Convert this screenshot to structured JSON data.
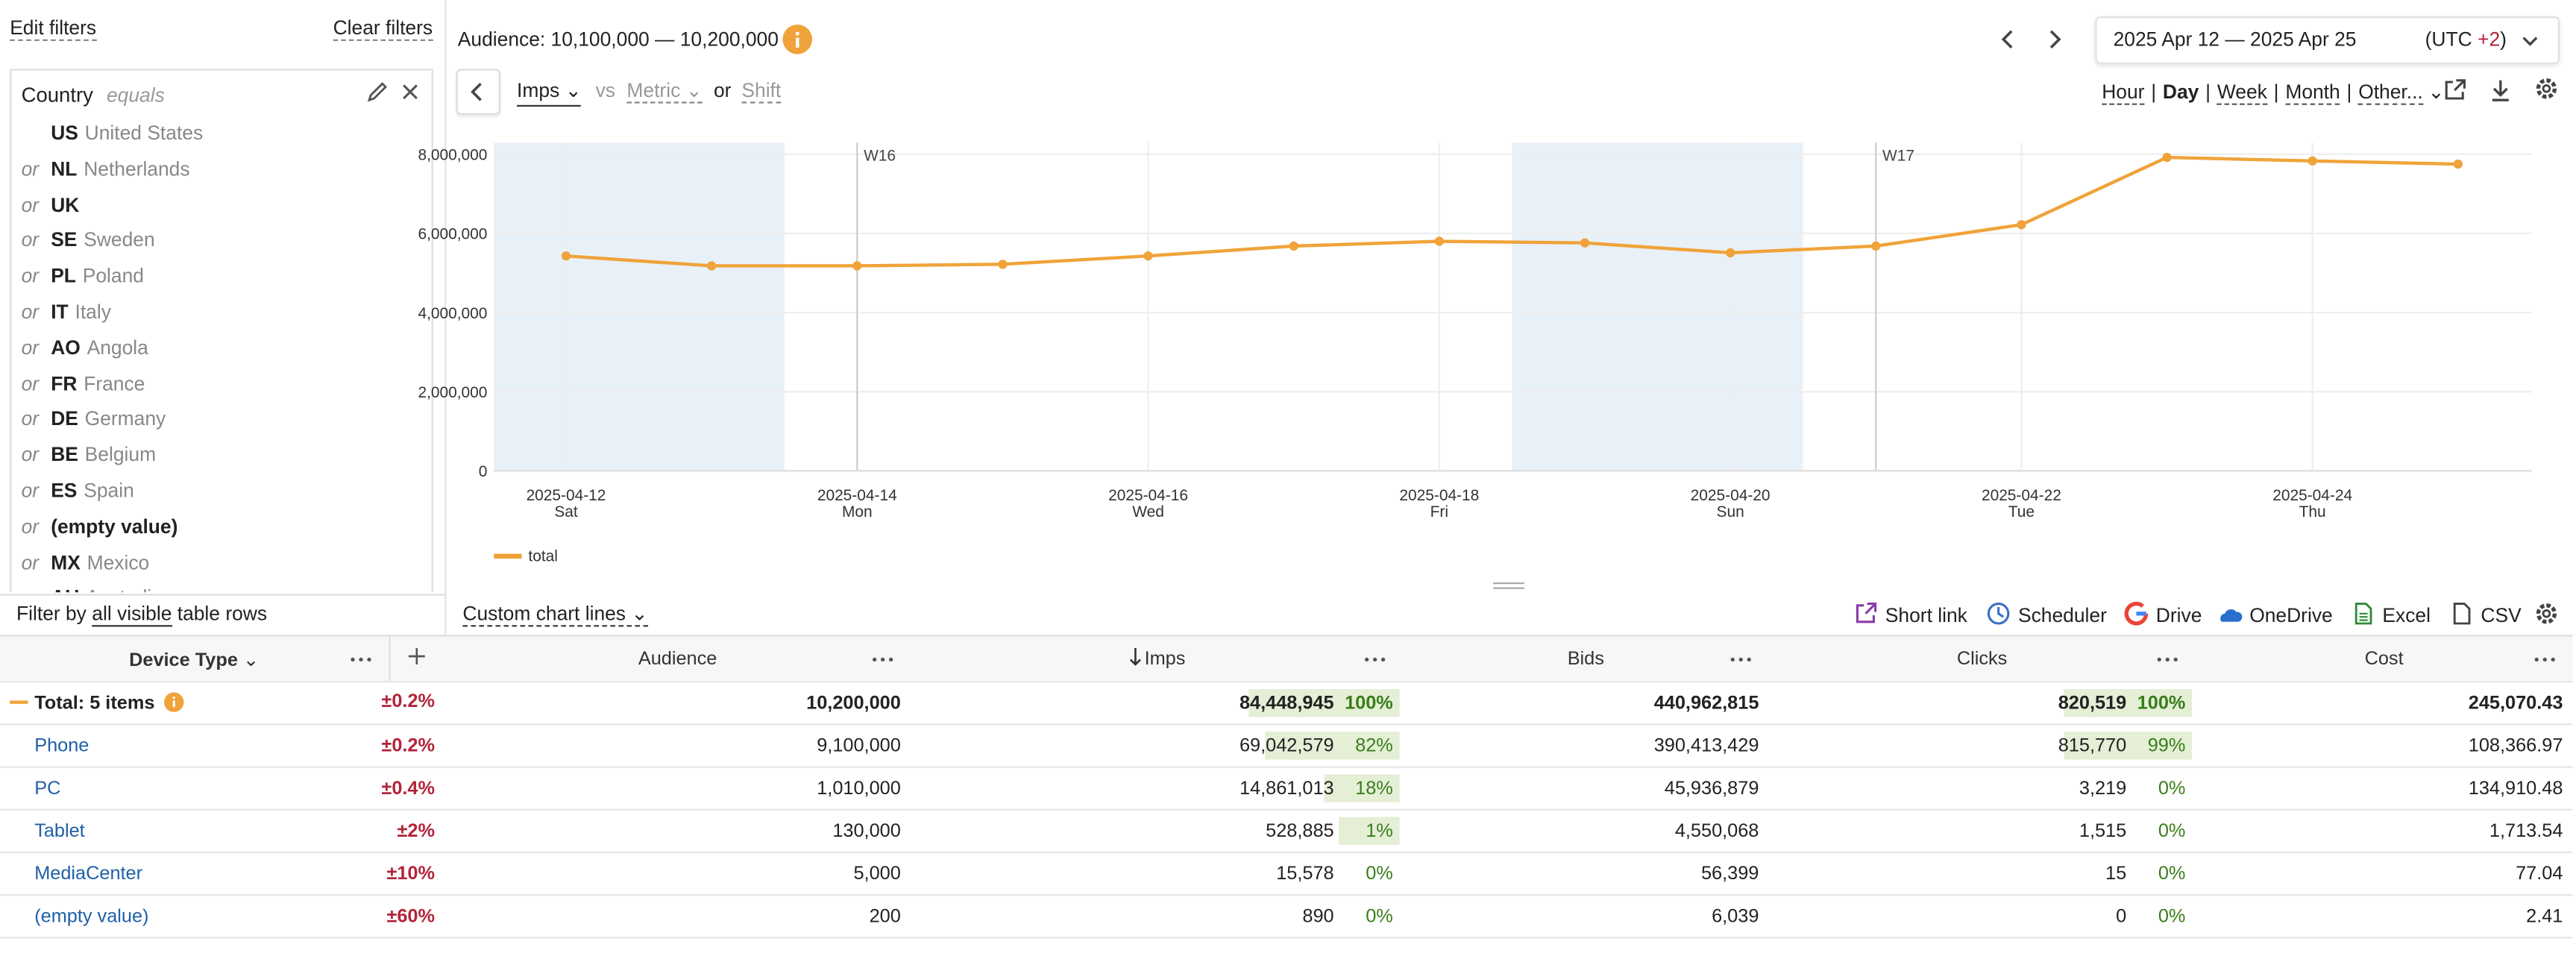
{
  "filters": {
    "edit": "Edit filters",
    "clear": "Clear filters",
    "field": "Country",
    "operator": "equals",
    "connector": "or",
    "values": [
      {
        "code": "US",
        "name": "United States"
      },
      {
        "code": "NL",
        "name": "Netherlands"
      },
      {
        "code": "UK"
      },
      {
        "code": "SE",
        "name": "Sweden"
      },
      {
        "code": "PL",
        "name": "Poland"
      },
      {
        "code": "IT",
        "name": "Italy"
      },
      {
        "code": "AO",
        "name": "Angola"
      },
      {
        "code": "FR",
        "name": "France"
      },
      {
        "code": "DE",
        "name": "Germany"
      },
      {
        "code": "BE",
        "name": "Belgium"
      },
      {
        "code": "ES",
        "name": "Spain"
      },
      {
        "code": "(empty value)"
      },
      {
        "code": "MX",
        "name": "Mexico"
      },
      {
        "code": "AU",
        "name": "Australia"
      }
    ],
    "filter_by": {
      "prefix": "Filter by",
      "scope": "all visible",
      "suffix": "table rows"
    }
  },
  "header": {
    "audience": "Audience: 10,100,000 — 10,200,000",
    "date_range": "2025 Apr 12 — 2025 Apr 25",
    "utc_open": "(UTC",
    "utc_offset": "+2",
    "utc_close": ")"
  },
  "metric_bar": {
    "metric": "Imps",
    "vs": "vs",
    "compare": "Metric",
    "or": "or",
    "shift": "Shift"
  },
  "granularity": {
    "options": [
      "Hour",
      "Day",
      "Week",
      "Month",
      "Other..."
    ],
    "selected": "Day",
    "separator": "|"
  },
  "chart_data": {
    "type": "line",
    "x": [
      "2025-04-12",
      "2025-04-13",
      "2025-04-14",
      "2025-04-15",
      "2025-04-16",
      "2025-04-17",
      "2025-04-18",
      "2025-04-19",
      "2025-04-20",
      "2025-04-21",
      "2025-04-22",
      "2025-04-23",
      "2025-04-24",
      "2025-04-25"
    ],
    "series": [
      {
        "name": "total",
        "color": "#f0a33a",
        "values": [
          5430000,
          5180000,
          5180000,
          5220000,
          5430000,
          5680000,
          5800000,
          5760000,
          5510000,
          5680000,
          6220000,
          7920000,
          7830000,
          7750000
        ]
      }
    ],
    "xticks": [
      {
        "date": "2025-04-12",
        "weekday": "Sat"
      },
      {
        "date": "2025-04-14",
        "weekday": "Mon"
      },
      {
        "date": "2025-04-16",
        "weekday": "Wed"
      },
      {
        "date": "2025-04-18",
        "weekday": "Fri"
      },
      {
        "date": "2025-04-20",
        "weekday": "Sun"
      },
      {
        "date": "2025-04-22",
        "weekday": "Tue"
      },
      {
        "date": "2025-04-24",
        "weekday": "Thu"
      }
    ],
    "ylim": [
      0,
      8000000
    ],
    "yticks": [
      0,
      {
        "value": 2000000,
        "label": "2,000,000"
      },
      {
        "value": 4000000,
        "label": "4,000,000"
      },
      {
        "value": 6000000,
        "label": "6,000,000"
      },
      {
        "value": 8000000,
        "label": "8,000,000"
      }
    ],
    "annotations": [
      {
        "text": "W16",
        "x": "2025-04-14"
      },
      {
        "text": "W17",
        "x": "2025-04-21"
      }
    ],
    "grid": true,
    "weekend_shading": true
  },
  "toolbar": {
    "custom_lines": "Custom chart lines",
    "actions": [
      "Short link",
      "Scheduler",
      "Drive",
      "OneDrive",
      "Excel",
      "CSV"
    ]
  },
  "table": {
    "columns": [
      "Device Type",
      "Audience",
      "Imps",
      "Bids",
      "Clicks",
      "Cost"
    ],
    "sorted_column": "Imps",
    "total": {
      "name": "Total: 5 items",
      "error": "±0.2%",
      "audience": "10,200,000",
      "imps": "84,448,945",
      "imps_share": "100%",
      "bids": "440,962,815",
      "clicks": "820,519",
      "clicks_share": "100%",
      "cost": "245,070.43"
    },
    "rows": [
      {
        "name": "Phone",
        "error": "±0.2%",
        "audience": "9,100,000",
        "imps": "69,042,579",
        "imps_share": "82%",
        "bids": "390,413,429",
        "clicks": "815,770",
        "clicks_share": "99%",
        "cost": "108,366.97"
      },
      {
        "name": "PC",
        "error": "±0.4%",
        "audience": "1,010,000",
        "imps": "14,861,013",
        "imps_share": "18%",
        "bids": "45,936,879",
        "clicks": "3,219",
        "clicks_share": "0%",
        "cost": "134,910.48"
      },
      {
        "name": "Tablet",
        "error": "±2%",
        "audience": "130,000",
        "imps": "528,885",
        "imps_share": "1%",
        "bids": "4,550,068",
        "clicks": "1,515",
        "clicks_share": "0%",
        "cost": "1,713.54"
      },
      {
        "name": "MediaCenter",
        "error": "±10%",
        "audience": "5,000",
        "imps": "15,578",
        "imps_share": "0%",
        "bids": "56,399",
        "clicks": "15",
        "clicks_share": "0%",
        "cost": "77.04"
      },
      {
        "name": "(empty value)",
        "error": "±60%",
        "audience": "200",
        "imps": "890",
        "imps_share": "0%",
        "bids": "6,039",
        "clicks": "0",
        "clicks_share": "0%",
        "cost": "2.41"
      }
    ]
  }
}
